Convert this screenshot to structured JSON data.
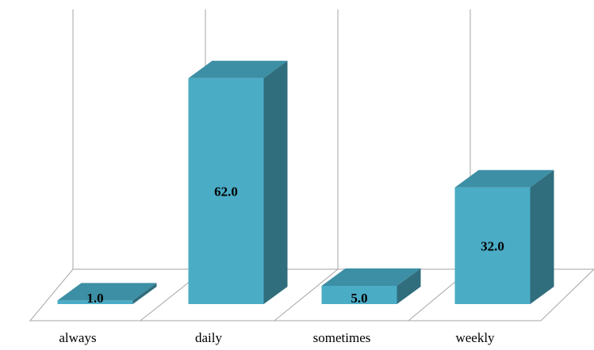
{
  "chart_data": {
    "type": "bar",
    "style": "3d-column",
    "categories": [
      "always",
      "daily",
      "sometimes",
      "weekly"
    ],
    "values": [
      1.0,
      62.0,
      5.0,
      32.0
    ],
    "value_labels": [
      "1.0",
      "62.0",
      "5.0",
      "32.0"
    ],
    "title": "",
    "xlabel": "",
    "ylabel": "",
    "ylim": [
      0,
      70
    ],
    "grid": false,
    "legend": "none",
    "colors": {
      "bar_front": "#4bacc6",
      "bar_top": "#3c8fa5",
      "bar_side": "#306d7d",
      "wall_lines": "#a6a6a6"
    }
  }
}
